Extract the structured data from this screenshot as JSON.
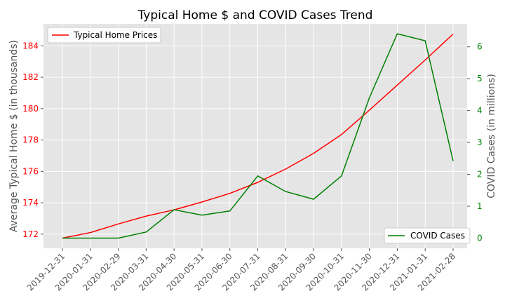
{
  "chart_data": {
    "type": "line",
    "title": "Typical Home $ and COVID Cases Trend",
    "xlabel": "",
    "ylabel_left": "Average Typical Home $ (in thousands)",
    "ylabel_right": "COVID Cases (in millions)",
    "categories": [
      "2019-12-31",
      "2020-01-31",
      "2020-02-29",
      "2020-03-31",
      "2020-04-30",
      "2020-05-31",
      "2020-06-30",
      "2020-07-31",
      "2020-08-31",
      "2020-09-30",
      "2020-10-31",
      "2020-11-30",
      "2020-12-31",
      "2021-01-31",
      "2021-02-28"
    ],
    "left_axis": {
      "ylim": [
        171.1,
        185.4
      ],
      "ticks": [
        172,
        174,
        176,
        178,
        180,
        182,
        184
      ],
      "tick_labels": [
        "172",
        "174",
        "176",
        "178",
        "180",
        "182",
        "184"
      ],
      "tick_color": "#ff0000"
    },
    "right_axis": {
      "ylim": [
        -0.32,
        6.72
      ],
      "ticks": [
        0,
        1,
        2,
        3,
        4,
        5,
        6
      ],
      "tick_labels": [
        "0",
        "1",
        "2",
        "3",
        "4",
        "5",
        "6"
      ],
      "tick_color": "#008000"
    },
    "series": [
      {
        "name": "Typical Home Prices",
        "axis": "left",
        "color": "#ff0000",
        "values": [
          171.75,
          172.1,
          172.65,
          173.15,
          173.55,
          174.05,
          174.6,
          175.3,
          176.15,
          177.15,
          178.35,
          179.9,
          181.5,
          183.1,
          184.75
        ]
      },
      {
        "name": "COVID Cases",
        "axis": "right",
        "color": "#008000",
        "values": [
          0.0,
          0.0,
          0.0,
          0.19,
          0.89,
          0.72,
          0.85,
          1.95,
          1.46,
          1.22,
          1.95,
          4.4,
          6.41,
          6.19,
          2.42
        ]
      }
    ],
    "legend": [
      {
        "label": "Typical Home Prices",
        "placement": "upper-left"
      },
      {
        "label": "COVID Cases",
        "placement": "lower-right"
      }
    ],
    "grid": true,
    "background": "#e5e5e5"
  }
}
